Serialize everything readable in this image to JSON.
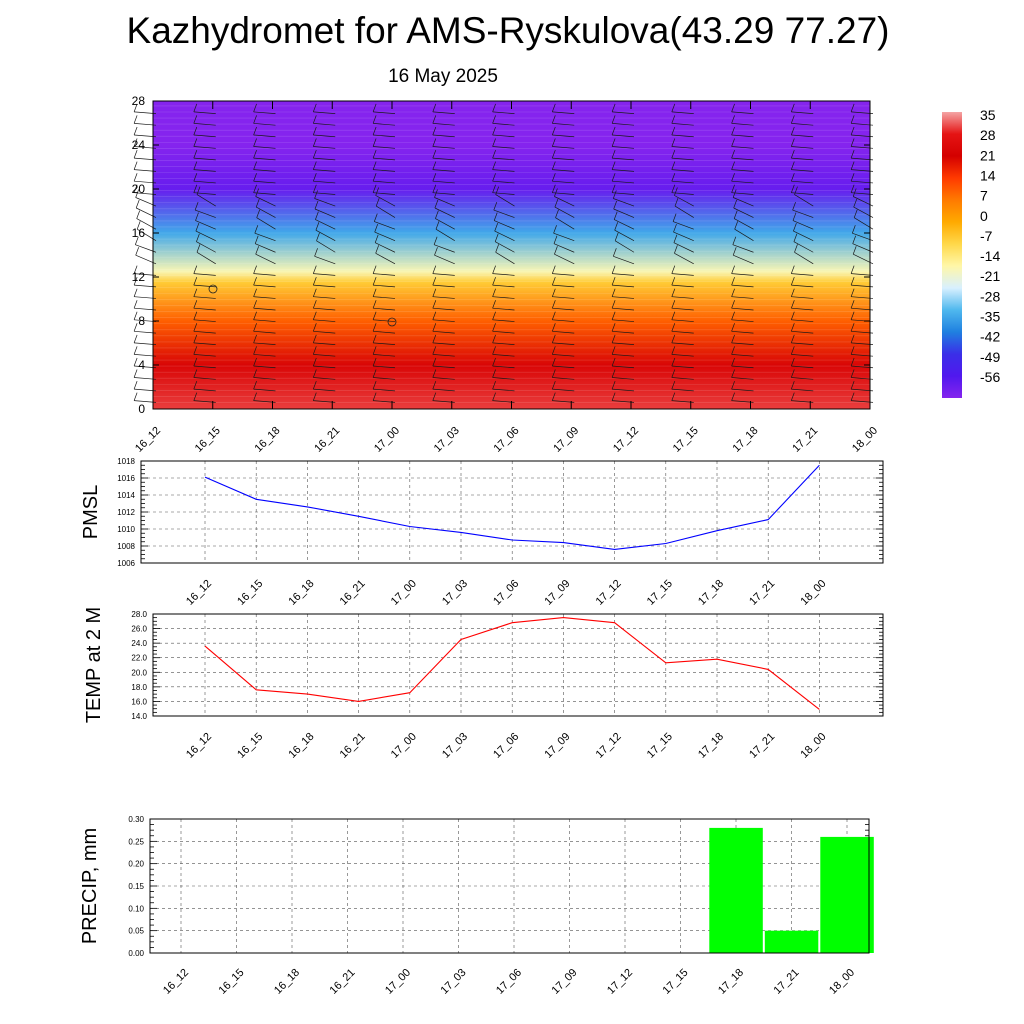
{
  "title": "Kazhydromet for AMS-Ryskulova(43.29 77.27)",
  "subtitle": "16 May 2025",
  "time_labels": [
    "16_12",
    "16_15",
    "16_18",
    "16_21",
    "17_00",
    "17_03",
    "17_06",
    "17_09",
    "17_12",
    "17_15",
    "17_18",
    "17_21",
    "18_00"
  ],
  "chart_data": [
    {
      "type": "heatmap",
      "title": "",
      "ylabel": "",
      "ylim": [
        0,
        28
      ],
      "yticks": [
        "0",
        "4",
        "8",
        "12",
        "16",
        "20",
        "24",
        "28"
      ],
      "x": [
        "16_12",
        "16_15",
        "16_18",
        "16_21",
        "17_00",
        "17_03",
        "17_06",
        "17_09",
        "17_12",
        "17_15",
        "17_18",
        "17_21",
        "18_00"
      ],
      "colorbar": {
        "labels": [
          "35",
          "28",
          "21",
          "14",
          "7",
          "0",
          "-7",
          "-14",
          "-21",
          "-28",
          "-35",
          "-42",
          "-49",
          "-56"
        ],
        "stops": [
          "#f4a4a4",
          "#e51414",
          "#d40000",
          "#ff3a00",
          "#ff7a00",
          "#ffaa00",
          "#ffd84a",
          "#fff7a8",
          "#d8f0ff",
          "#4fb8ee",
          "#1f80e0",
          "#3a2fe8",
          "#5018ee",
          "#8524ee"
        ]
      },
      "temperature_profile_c": [
        {
          "height": 0,
          "value": 30
        },
        {
          "height": 4,
          "value": 23
        },
        {
          "height": 8,
          "value": 10
        },
        {
          "height": 11.5,
          "value": -5
        },
        {
          "height": 12.5,
          "value": -15
        },
        {
          "height": 16,
          "value": -30
        },
        {
          "height": 20,
          "value": -52
        },
        {
          "height": 24,
          "value": -58
        },
        {
          "height": 28,
          "value": -58
        }
      ],
      "wind_barbs": true
    },
    {
      "type": "line",
      "ylabel": "PMSL",
      "ylim": [
        1006,
        1018
      ],
      "yticks": [
        "1006",
        "1008",
        "1010",
        "1012",
        "1014",
        "1016",
        "1018"
      ],
      "color": "#0000ff",
      "x": [
        "16_12",
        "16_15",
        "16_18",
        "16_21",
        "17_00",
        "17_03",
        "17_06",
        "17_09",
        "17_12",
        "17_15",
        "17_18",
        "17_21",
        "18_00"
      ],
      "values": [
        1016.1,
        1013.5,
        1012.6,
        1011.5,
        1010.3,
        1009.6,
        1008.7,
        1008.4,
        1007.6,
        1008.3,
        1009.8,
        1011.1,
        1017.5
      ]
    },
    {
      "type": "line",
      "ylabel": "TEMP at 2 M",
      "ylim": [
        14,
        28
      ],
      "yticks": [
        "14.0",
        "16.0",
        "18.0",
        "20.0",
        "22.0",
        "24.0",
        "26.0",
        "28.0"
      ],
      "color": "#ff0000",
      "x": [
        "16_12",
        "16_15",
        "16_18",
        "16_21",
        "17_00",
        "17_03",
        "17_06",
        "17_09",
        "17_12",
        "17_15",
        "17_18",
        "17_21",
        "18_00"
      ],
      "values": [
        23.6,
        17.6,
        17.0,
        16.0,
        17.2,
        24.5,
        26.8,
        27.5,
        26.8,
        21.3,
        21.8,
        20.4,
        14.9
      ]
    },
    {
      "type": "bar",
      "ylabel": "PRECIP, mm",
      "ylim": [
        0,
        0.3
      ],
      "yticks": [
        "0.00",
        "0.05",
        "0.10",
        "0.15",
        "0.20",
        "0.25",
        "0.30"
      ],
      "color": "#00ff00",
      "categories": [
        "16_12",
        "16_15",
        "16_18",
        "16_21",
        "17_00",
        "17_03",
        "17_06",
        "17_09",
        "17_12",
        "17_15",
        "17_18",
        "17_21",
        "18_00"
      ],
      "values": [
        0,
        0,
        0,
        0,
        0,
        0,
        0,
        0,
        0,
        0,
        0.28,
        0.05,
        0.26
      ]
    }
  ]
}
